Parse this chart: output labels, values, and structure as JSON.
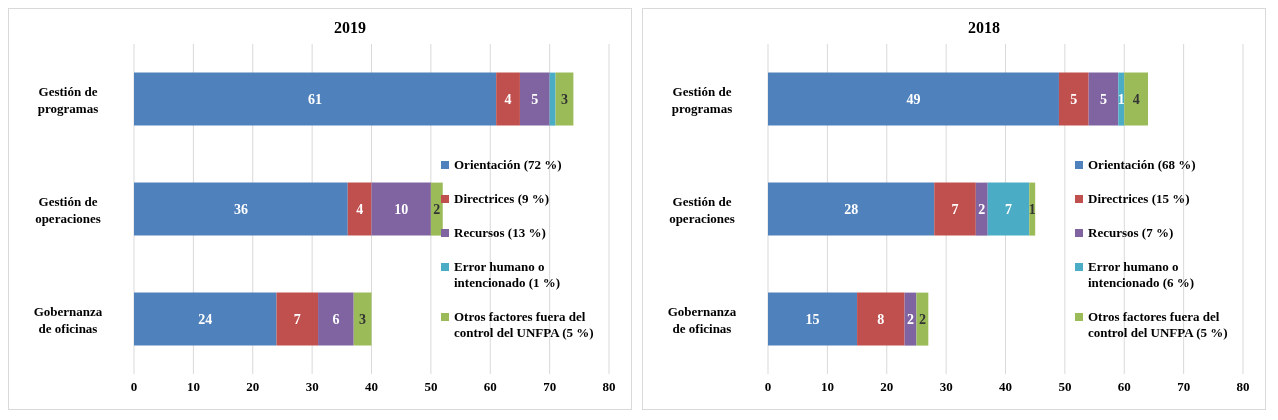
{
  "chart_data": [
    {
      "type": "bar",
      "orientation": "horizontal",
      "stacked": true,
      "title": "2019",
      "categories": [
        "Gestión de programas",
        "Gestión de operaciones",
        "Gobernanza de oficinas"
      ],
      "series": [
        {
          "name": "Orientación (72 %)",
          "color": "#4f81bd",
          "values": [
            61,
            36,
            24
          ],
          "value_labels": [
            "61",
            "36",
            "24"
          ]
        },
        {
          "name": "Directrices (9 %)",
          "color": "#c0504d",
          "values": [
            4,
            4,
            7
          ],
          "value_labels": [
            "4",
            "4",
            "7"
          ]
        },
        {
          "name": "Recursos (13 %)",
          "color": "#8064a2",
          "values": [
            5,
            10,
            6
          ],
          "value_labels": [
            "5",
            "10",
            "6"
          ]
        },
        {
          "name": "Error humano o intencionado (1 %)",
          "color": "#4bacc6",
          "values": [
            1,
            null,
            null
          ],
          "value_labels": [
            null,
            null,
            null
          ]
        },
        {
          "name": "Otros factores fuera del control del UNFPA (5 %)",
          "color": "#9bbb59",
          "values": [
            3,
            2,
            3
          ],
          "value_labels": [
            "3",
            "2",
            "3"
          ]
        }
      ],
      "xlim": [
        0,
        80
      ],
      "xticks": [
        0,
        10,
        20,
        30,
        40,
        50,
        60,
        70,
        80
      ],
      "grid": "x",
      "legend": "right"
    },
    {
      "type": "bar",
      "orientation": "horizontal",
      "stacked": true,
      "title": "2018",
      "categories": [
        "Gestión de programas",
        "Gestión de operaciones",
        "Gobernanza de oficinas"
      ],
      "series": [
        {
          "name": "Orientación (68 %)",
          "color": "#4f81bd",
          "values": [
            49,
            28,
            15
          ],
          "value_labels": [
            "49",
            "28",
            "15"
          ]
        },
        {
          "name": "Directrices (15 %)",
          "color": "#c0504d",
          "values": [
            5,
            7,
            8
          ],
          "value_labels": [
            "5",
            "7",
            "8"
          ]
        },
        {
          "name": "Recursos (7 %)",
          "color": "#8064a2",
          "values": [
            5,
            2,
            2
          ],
          "value_labels": [
            "5",
            "2",
            "2"
          ]
        },
        {
          "name": "Error humano o intencionado (6 %)",
          "color": "#4bacc6",
          "values": [
            1,
            7,
            null
          ],
          "value_labels": [
            "1",
            "7",
            null
          ]
        },
        {
          "name": "Otros factores fuera del control del UNFPA (5 %)",
          "color": "#9bbb59",
          "values": [
            4,
            1,
            2
          ],
          "value_labels": [
            "4",
            "1",
            "2"
          ]
        }
      ],
      "xlim": [
        0,
        80
      ],
      "xticks": [
        0,
        10,
        20,
        30,
        40,
        50,
        60,
        70,
        80
      ],
      "grid": "x",
      "legend": "right"
    }
  ]
}
